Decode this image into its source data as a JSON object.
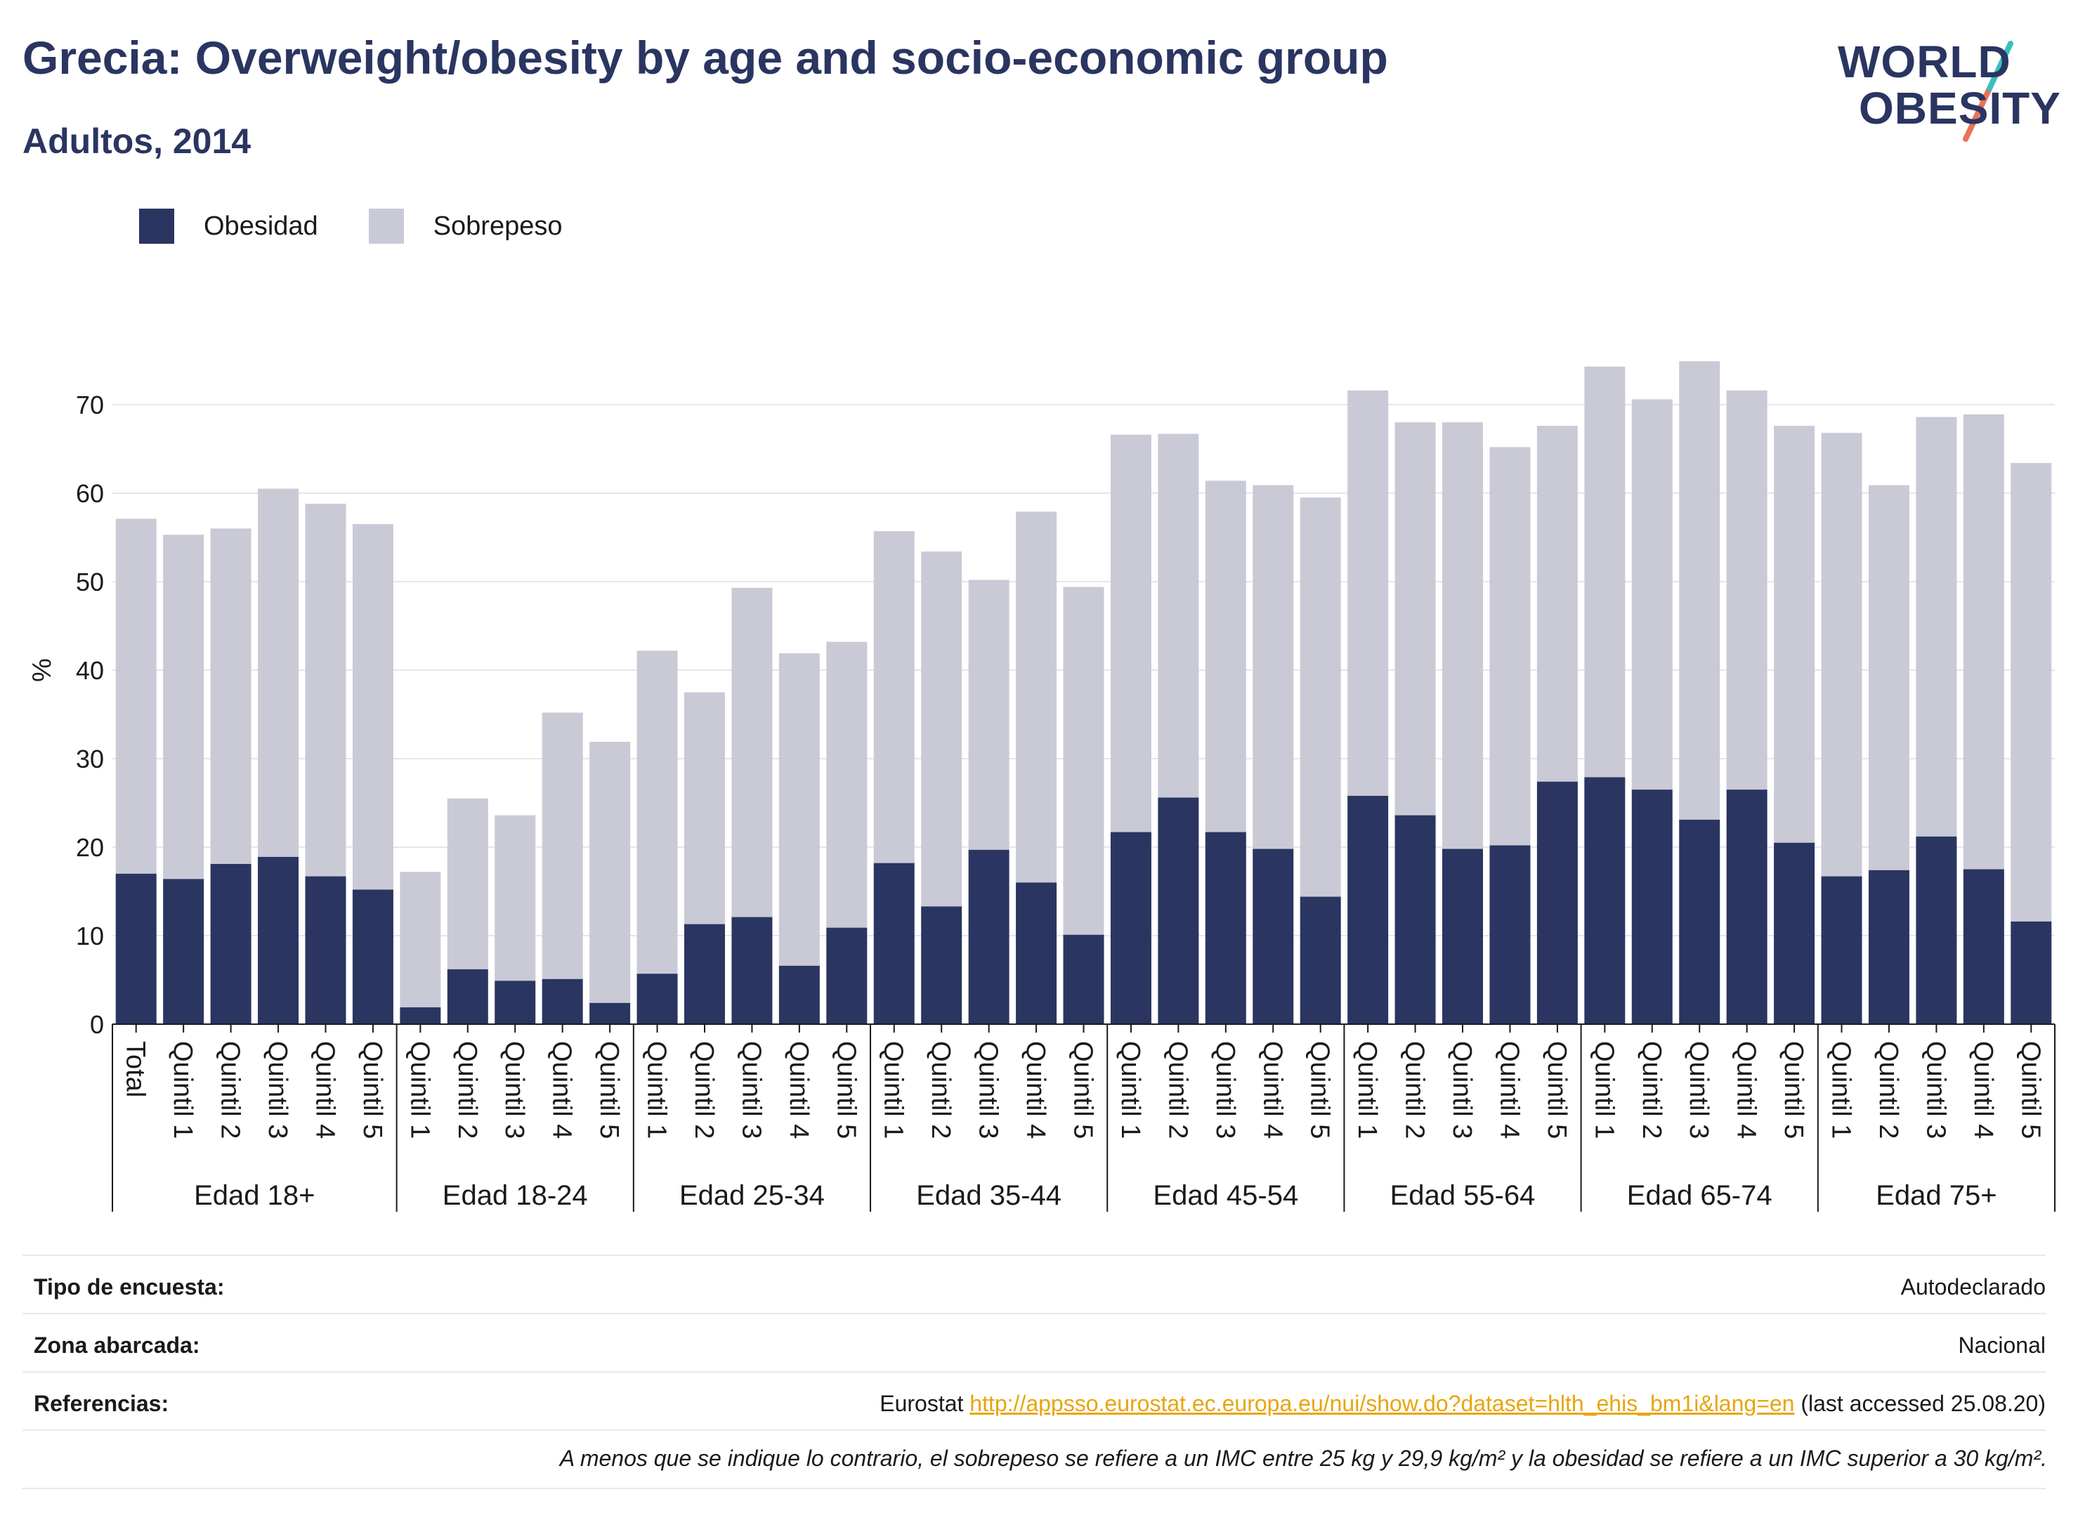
{
  "header": {
    "title": "Grecia: Overweight/obesity by age and socio-economic group",
    "subtitle": "Adultos, 2014",
    "logo_line1": "WORLD",
    "logo_line2": "OBESITY"
  },
  "legend": {
    "items": [
      {
        "label": "Obesidad",
        "color": "#2a3561"
      },
      {
        "label": "Sobrepeso",
        "color": "#c9cad6"
      }
    ]
  },
  "chart_data": {
    "type": "bar",
    "stacked": true,
    "ylabel": "%",
    "ylim": [
      0,
      80
    ],
    "yticks": [
      0,
      10,
      20,
      30,
      40,
      50,
      60,
      70
    ],
    "grid": true,
    "legend_position": "top-left",
    "groups": [
      {
        "label": "Edad 18+",
        "categories": [
          "Total",
          "Quintil 1",
          "Quintil 2",
          "Quintil 3",
          "Quintil 4",
          "Quintil 5"
        ],
        "obesidad": [
          17.0,
          16.4,
          18.1,
          18.9,
          16.7,
          15.2
        ],
        "total": [
          57.1,
          55.3,
          56.0,
          60.5,
          58.8,
          56.5
        ]
      },
      {
        "label": "Edad 18-24",
        "categories": [
          "Quintil 1",
          "Quintil 2",
          "Quintil 3",
          "Quintil 4",
          "Quintil 5"
        ],
        "obesidad": [
          1.9,
          6.2,
          4.9,
          5.1,
          2.4
        ],
        "total": [
          17.2,
          25.5,
          23.6,
          35.2,
          31.9
        ]
      },
      {
        "label": "Edad 25-34",
        "categories": [
          "Quintil 1",
          "Quintil 2",
          "Quintil 3",
          "Quintil 4",
          "Quintil 5"
        ],
        "obesidad": [
          5.7,
          11.3,
          12.1,
          6.6,
          10.9
        ],
        "total": [
          42.2,
          37.5,
          49.3,
          41.9,
          43.2
        ]
      },
      {
        "label": "Edad 35-44",
        "categories": [
          "Quintil 1",
          "Quintil 2",
          "Quintil 3",
          "Quintil 4",
          "Quintil 5"
        ],
        "obesidad": [
          18.2,
          13.3,
          19.7,
          16.0,
          10.1
        ],
        "total": [
          55.7,
          53.4,
          50.2,
          57.9,
          49.4
        ]
      },
      {
        "label": "Edad 45-54",
        "categories": [
          "Quintil 1",
          "Quintil 2",
          "Quintil 3",
          "Quintil 4",
          "Quintil 5"
        ],
        "obesidad": [
          21.7,
          25.6,
          21.7,
          19.8,
          14.4
        ],
        "total": [
          66.6,
          66.7,
          61.4,
          60.9,
          59.5
        ]
      },
      {
        "label": "Edad 55-64",
        "categories": [
          "Quintil 1",
          "Quintil 2",
          "Quintil 3",
          "Quintil 4",
          "Quintil 5"
        ],
        "obesidad": [
          25.8,
          23.6,
          19.8,
          20.2,
          27.4
        ],
        "total": [
          71.6,
          68.0,
          68.0,
          65.2,
          67.6
        ]
      },
      {
        "label": "Edad 65-74",
        "categories": [
          "Quintil 1",
          "Quintil 2",
          "Quintil 3",
          "Quintil 4",
          "Quintil 5"
        ],
        "obesidad": [
          27.9,
          26.5,
          23.1,
          26.5,
          20.5
        ],
        "total": [
          74.3,
          70.6,
          74.9,
          71.6,
          67.6
        ]
      },
      {
        "label": "Edad 75+",
        "categories": [
          "Quintil 1",
          "Quintil 2",
          "Quintil 3",
          "Quintil 4",
          "Quintil 5"
        ],
        "obesidad": [
          16.7,
          17.4,
          21.2,
          17.5,
          11.6
        ],
        "total": [
          66.8,
          60.9,
          68.6,
          68.9,
          63.4
        ]
      }
    ]
  },
  "info": {
    "survey_label": "Tipo de encuesta:",
    "survey_value": "Autodeclarado",
    "area_label": "Zona abarcada:",
    "area_value": "Nacional",
    "refs_label": "Referencias:",
    "refs_prefix": "Eurostat ",
    "refs_link": "http://appsso.eurostat.ec.europa.eu/nui/show.do?dataset=hlth_ehis_bm1i&lang=en",
    "refs_suffix": " (last accessed 25.08.20)",
    "note": "A menos que se indique lo contrario, el sobrepeso se refiere a un IMC entre 25 kg y 29,9 kg/m² y la obesidad se refiere a un IMC superior a 30 kg/m²."
  }
}
